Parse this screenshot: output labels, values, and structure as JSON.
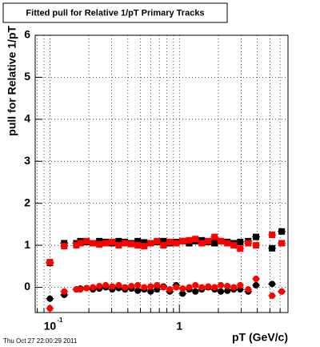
{
  "chart_data": {
    "type": "scatter",
    "title": "Fitted pull for Relative 1/pT  Primary Tracks",
    "y_label": "pull for Relative 1/pT",
    "x_label": "pT (GeV/c)",
    "timestamp": "Thu Oct 27 22:00:29 2011",
    "x_log": true,
    "grid": true,
    "xlim": [
      0.077,
      6.9
    ],
    "ylim": [
      -0.6,
      6
    ],
    "xticks": [
      {
        "value": 0.1,
        "label": "10",
        "exponent": "-1"
      },
      {
        "value": 1,
        "label": "1"
      }
    ],
    "xminor": [
      0.08,
      0.09,
      0.2,
      0.3,
      0.4,
      0.5,
      0.6,
      0.7,
      0.8,
      0.9,
      2,
      3,
      4,
      5,
      6
    ],
    "yticks": [
      0,
      1,
      2,
      3,
      4,
      5,
      6
    ],
    "x": [
      0.1,
      0.129,
      0.16,
      0.172,
      0.192,
      0.215,
      0.241,
      0.27,
      0.303,
      0.34,
      0.38,
      0.426,
      0.477,
      0.535,
      0.6,
      0.672,
      0.753,
      0.843,
      0.945,
      1.06,
      1.19,
      1.33,
      1.49,
      1.67,
      1.87,
      2.09,
      2.35,
      2.63,
      2.95,
      3.4,
      3.91,
      5.2,
      6.17
    ],
    "series": [
      {
        "color": "#000000",
        "marker": "square",
        "values": [
          0.58,
          1.05,
          1.05,
          1.1,
          1.08,
          1.05,
          1.1,
          1.08,
          1.05,
          1.1,
          1.08,
          1.05,
          1.1,
          1.07,
          1.05,
          1.08,
          1.1,
          1.05,
          1.08,
          1.1,
          1.05,
          1.1,
          1.12,
          1.08,
          1.05,
          1.1,
          1.08,
          1.05,
          1.08,
          1.1,
          1.2,
          0.93,
          1.33
        ]
      },
      {
        "color": "#000000",
        "marker": "circle",
        "values": [
          -0.27,
          -0.18,
          -0.05,
          -0.03,
          -0.02,
          -0.05,
          -0.03,
          0.0,
          -0.05,
          -0.02,
          -0.05,
          -0.03,
          -0.08,
          -0.05,
          -0.1,
          -0.05,
          0.02,
          -0.1,
          0.05,
          -0.15,
          -0.05,
          -0.1,
          -0.05,
          0.0,
          -0.05,
          -0.1,
          -0.08,
          -0.05,
          -0.05,
          -0.1,
          0.05,
          0.08,
          -0.1
        ]
      },
      {
        "color": "#ff0000",
        "marker": "square",
        "values": [
          0.6,
          0.98,
          1.0,
          1.05,
          1.1,
          1.05,
          1.02,
          1.05,
          1.08,
          1.0,
          1.05,
          1.03,
          1.0,
          0.98,
          1.05,
          1.1,
          1.0,
          1.08,
          1.05,
          1.1,
          1.12,
          1.15,
          1.05,
          1.1,
          1.2,
          1.1,
          1.05,
          1.0,
          0.92,
          1.05,
          1.0,
          1.25,
          1.05
        ]
      },
      {
        "color": "#ff0000",
        "marker": "circle",
        "values": [
          -0.5,
          -0.1,
          -0.05,
          -0.05,
          -0.02,
          0.0,
          0.03,
          0.05,
          0.02,
          0.05,
          0.0,
          0.03,
          0.05,
          0.0,
          0.02,
          0.05,
          0.0,
          -0.05,
          0.0,
          -0.03,
          0.0,
          0.05,
          0.0,
          0.02,
          0.0,
          0.05,
          0.03,
          0.0,
          0.05,
          -0.05,
          0.2,
          -0.2,
          -0.1
        ]
      }
    ]
  }
}
